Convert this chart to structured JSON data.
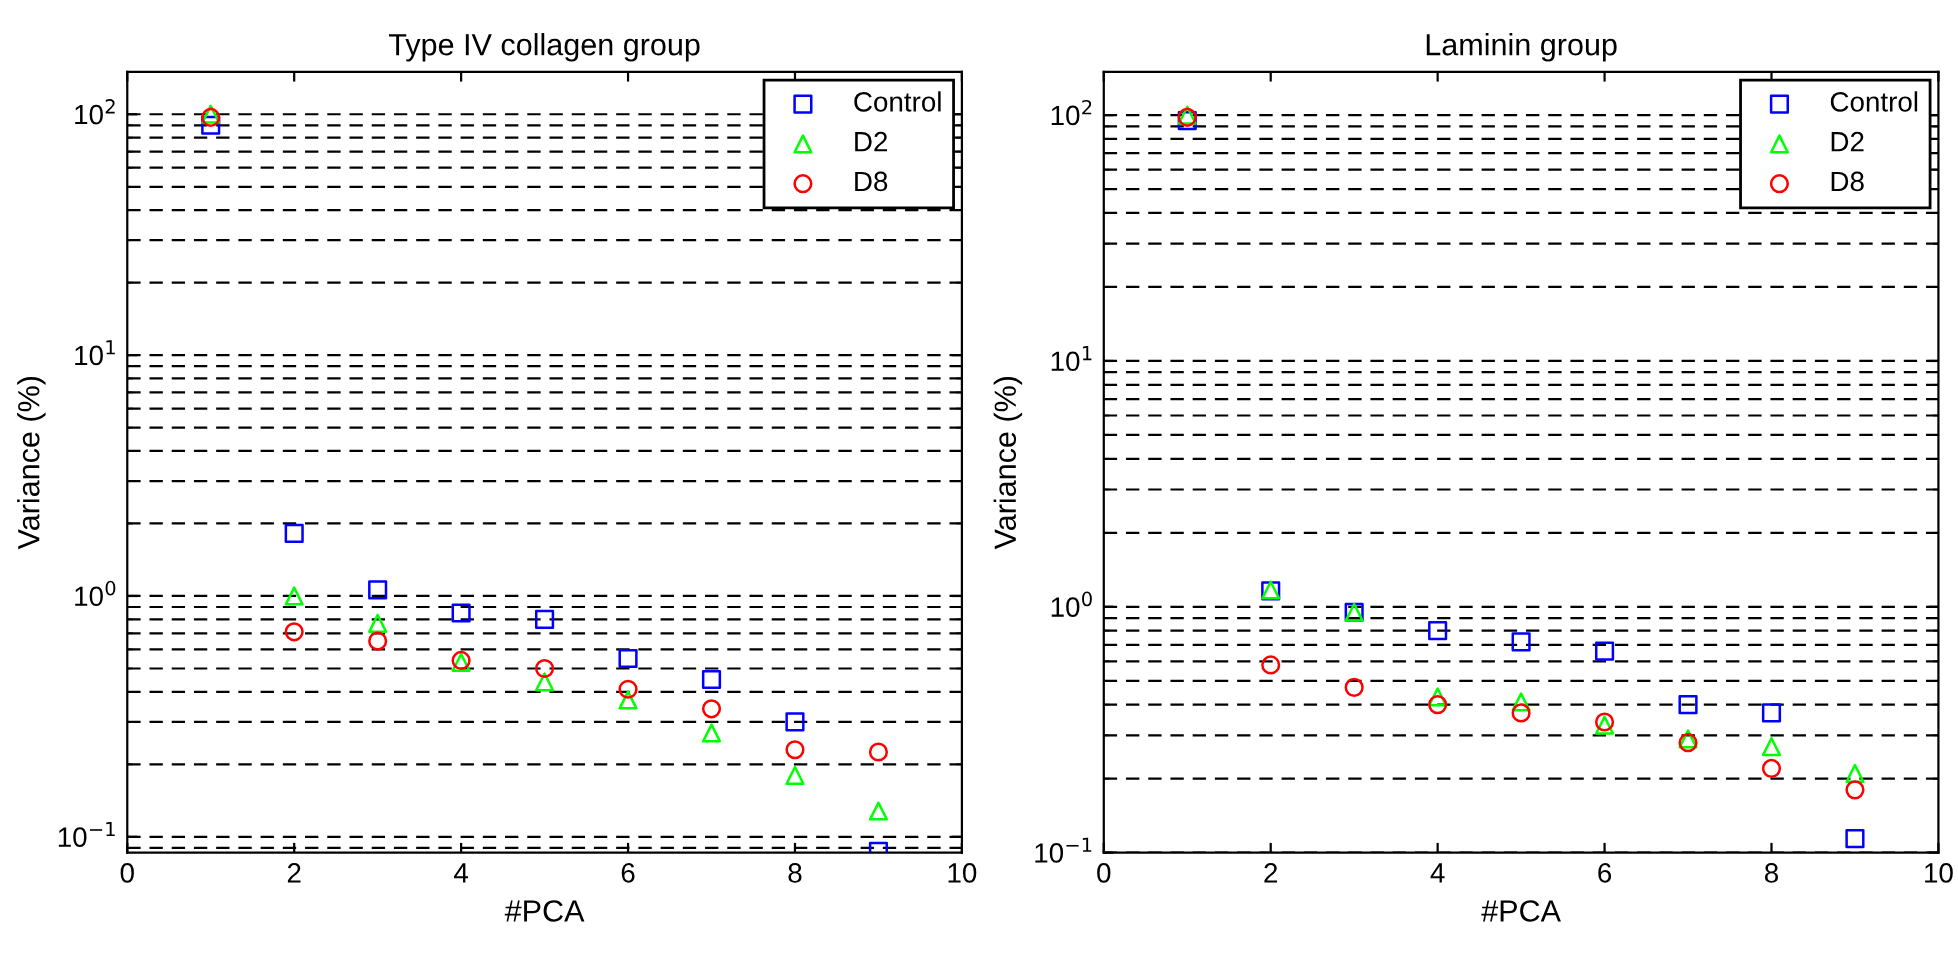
{
  "chart_data": [
    {
      "type": "scatter",
      "title": "Type IV collagen group",
      "xlabel": "#PCA",
      "ylabel": "Variance (%)",
      "log": "y",
      "grid": "y",
      "legend": "top right",
      "xlim": [
        0,
        10
      ],
      "xticks": [
        0,
        2,
        4,
        6,
        8,
        10
      ],
      "ylim": [
        0.086,
        150
      ],
      "yticks": [
        {
          "value": 0.1,
          "label": "10$^{−1}$"
        },
        {
          "value": 1,
          "label": "10$^{0}$"
        },
        {
          "value": 10,
          "label": "10$^{1}$"
        },
        {
          "value": 100,
          "label": "10$^{2}$"
        }
      ],
      "x": [
        1,
        2,
        3,
        4,
        5,
        6,
        7,
        8,
        9
      ],
      "series": [
        {
          "name": "Control",
          "color": "#0000ff",
          "marker": "square",
          "values": [
            90,
            1.82,
            1.06,
            0.85,
            0.8,
            0.55,
            0.45,
            0.3,
            0.087
          ]
        },
        {
          "name": "D2",
          "color": "#00ff00",
          "marker": "triangle",
          "values": [
            100,
            1.0,
            0.77,
            0.53,
            0.44,
            0.37,
            0.27,
            0.18,
            0.128
          ]
        },
        {
          "name": "D8",
          "color": "#ff0000",
          "marker": "circle",
          "values": [
            97,
            0.71,
            0.65,
            0.54,
            0.5,
            0.41,
            0.34,
            0.23,
            0.225
          ]
        }
      ]
    },
    {
      "type": "scatter",
      "title": "Laminin group",
      "xlabel": "#PCA",
      "ylabel": "Variance (%)",
      "log": "y",
      "grid": "y",
      "legend": "top right",
      "xlim": [
        0,
        10
      ],
      "xticks": [
        0,
        2,
        4,
        6,
        8,
        10
      ],
      "ylim": [
        0.1,
        150
      ],
      "yticks": [
        {
          "value": 0.1,
          "label": "10$^{−1}$"
        },
        {
          "value": 1,
          "label": "10$^{0}$"
        },
        {
          "value": 10,
          "label": "10$^{1}$"
        },
        {
          "value": 100,
          "label": "10$^{2}$"
        }
      ],
      "x": [
        1,
        2,
        3,
        4,
        5,
        6,
        7,
        8,
        9
      ],
      "series": [
        {
          "name": "Control",
          "color": "#0000ff",
          "marker": "square",
          "values": [
            95,
            1.16,
            0.95,
            0.8,
            0.72,
            0.66,
            0.4,
            0.37,
            0.114
          ]
        },
        {
          "name": "D2",
          "color": "#00ff00",
          "marker": "triangle",
          "values": [
            100,
            1.17,
            0.95,
            0.43,
            0.41,
            0.33,
            0.29,
            0.27,
            0.21
          ]
        },
        {
          "name": "D8",
          "color": "#ff0000",
          "marker": "circle",
          "values": [
            98,
            0.58,
            0.47,
            0.4,
            0.37,
            0.34,
            0.28,
            0.22,
            0.18
          ]
        }
      ]
    }
  ]
}
